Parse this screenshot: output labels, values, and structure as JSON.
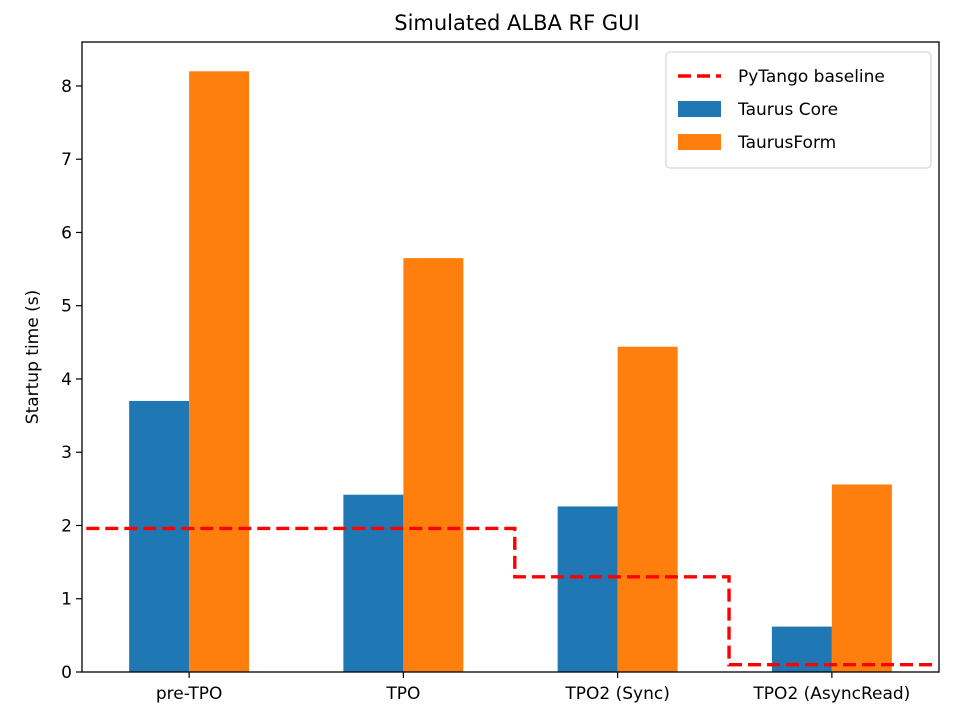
{
  "chart_data": {
    "type": "bar",
    "title": "Simulated ALBA RF GUI",
    "xlabel": "",
    "ylabel": "Startup time (s)",
    "categories": [
      "pre-TPO",
      "TPO",
      "TPO2 (Sync)",
      "TPO2 (AsyncRead)"
    ],
    "ylim": [
      0,
      8.6
    ],
    "yticks": [
      0,
      1,
      2,
      3,
      4,
      5,
      6,
      7,
      8
    ],
    "series": [
      {
        "name": "Taurus Core",
        "color": "#1f77b4",
        "values": [
          3.7,
          2.42,
          2.26,
          0.62
        ]
      },
      {
        "name": "TaurusForm",
        "color": "#ff7f0e",
        "values": [
          8.2,
          5.65,
          4.44,
          2.56
        ]
      }
    ],
    "baseline": {
      "name": "PyTango baseline",
      "color": "#ff0000",
      "style": "dashed-step",
      "values": [
        1.96,
        1.96,
        1.3,
        0.1
      ]
    },
    "legend": {
      "position": "top-right",
      "entries": [
        "PyTango baseline",
        "Taurus Core",
        "TaurusForm"
      ]
    },
    "grid": false
  }
}
